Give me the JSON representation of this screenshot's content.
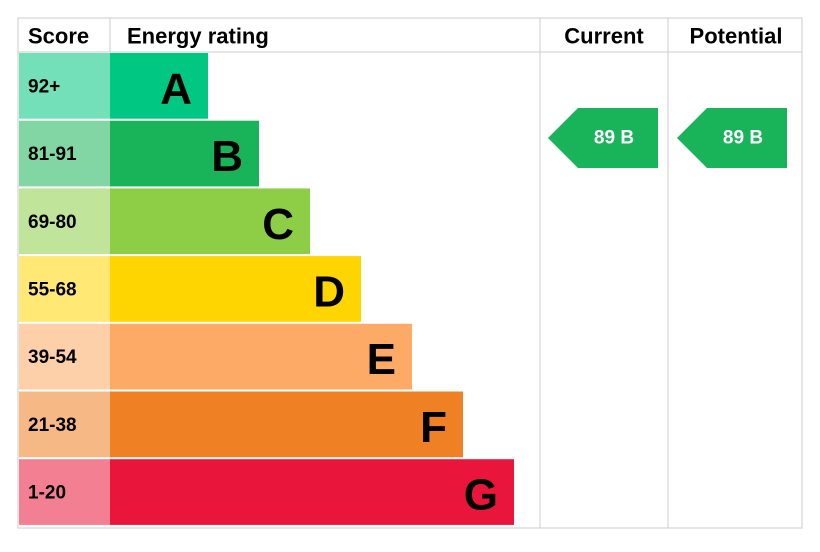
{
  "header": {
    "score": "Score",
    "rating": "Energy rating",
    "current": "Current",
    "potential": "Potential"
  },
  "rows": [
    {
      "score": "92+",
      "letter": "A",
      "color": "#00c781"
    },
    {
      "score": "81-91",
      "letter": "B",
      "color": "#19b459"
    },
    {
      "score": "69-80",
      "letter": "C",
      "color": "#8dce46"
    },
    {
      "score": "55-68",
      "letter": "D",
      "color": "#ffd500"
    },
    {
      "score": "39-54",
      "letter": "E",
      "color": "#fcaa65"
    },
    {
      "score": "21-38",
      "letter": "F",
      "color": "#ef8023"
    },
    {
      "score": "1-20",
      "letter": "G",
      "color": "#e9153b"
    }
  ],
  "current": {
    "label": "89 B",
    "color": "#19b459"
  },
  "potential": {
    "label": "89 B",
    "color": "#19b459"
  }
}
